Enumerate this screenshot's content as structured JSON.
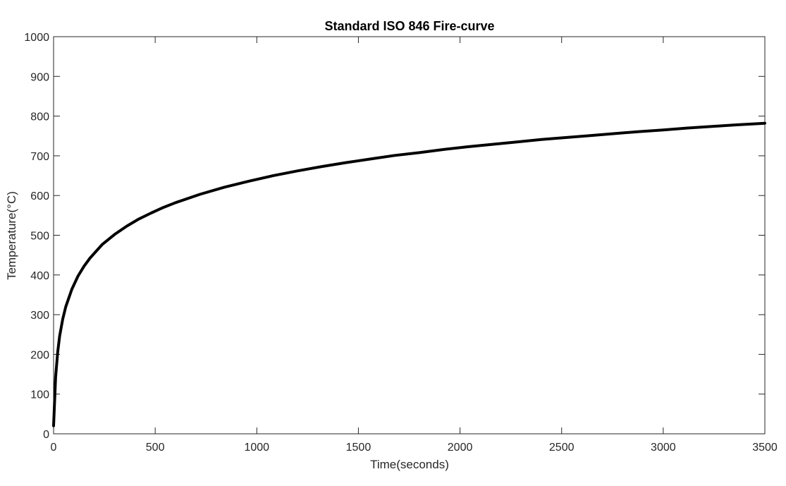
{
  "chart_data": {
    "type": "line",
    "title": "Standard ISO 846 Fire-curve",
    "xlabel": "Time(seconds)",
    "ylabel": "Temperature(°C)",
    "xlim": [
      0,
      3500
    ],
    "ylim": [
      0,
      1000
    ],
    "xticks": [
      "0",
      "500",
      "1000",
      "1500",
      "2000",
      "2500",
      "3000",
      "3500"
    ],
    "yticks": [
      "0",
      "100",
      "200",
      "300",
      "400",
      "500",
      "600",
      "700",
      "800",
      "900",
      "1000"
    ],
    "grid": false,
    "legend": "none",
    "line_color": "#000000",
    "series": [
      {
        "x": [
          0,
          10,
          20,
          30,
          45,
          60,
          90,
          120,
          150,
          180,
          240,
          300,
          360,
          420,
          480,
          540,
          600,
          720,
          840,
          960,
          1080,
          1200,
          1320,
          1440,
          1560,
          1680,
          1800,
          1920,
          2040,
          2160,
          2280,
          2400,
          2520,
          2640,
          2760,
          2880,
          3000,
          3120,
          3240,
          3360,
          3500
        ],
        "y": [
          20,
          143,
          205,
          246,
          289,
          320,
          364,
          397,
          422,
          443,
          477,
          502,
          523,
          541,
          556,
          570,
          582,
          603,
          621,
          636,
          650,
          662,
          673,
          683,
          692,
          701,
          708,
          716,
          723,
          729,
          735,
          741,
          746,
          751,
          756,
          761,
          765,
          770,
          774,
          778,
          782
        ]
      }
    ]
  }
}
